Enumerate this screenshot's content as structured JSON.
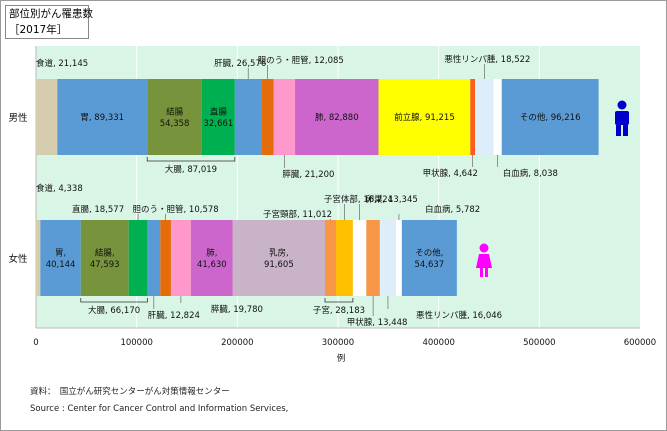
{
  "title": {
    "line1": "部位別がん罹患数",
    "line2": "［2017年］"
  },
  "source": {
    "line1": "資料：　国立がん研究センターがん対策情報センター",
    "line2": "Source : Center for Cancer Control and Information Services,"
  },
  "chart_data": {
    "type": "bar",
    "orientation": "horizontal",
    "stacked": true,
    "xlabel": "例",
    "xlim": [
      0,
      600000
    ],
    "xticks": [
      0,
      100000,
      200000,
      300000,
      400000,
      500000,
      600000
    ],
    "xtick_labels": [
      "0",
      "100000",
      "200000",
      "300000",
      "400000",
      "500000",
      "600000"
    ],
    "grid": true,
    "rows": [
      {
        "label": "男性",
        "icon": "male-figure-icon",
        "segments": [
          {
            "name": "食道",
            "value": 21145,
            "color": "#d6ccae",
            "label": "食道, 21,145",
            "label_pos": "outside"
          },
          {
            "name": "胃",
            "value": 89331,
            "color": "#5b9bd5",
            "label": "胃, 89,331",
            "label_pos": "inside"
          },
          {
            "name": "結腸",
            "value": 54358,
            "color": "#77933c",
            "label": "結腸\n54,358",
            "label_pos": "inside"
          },
          {
            "name": "直腸",
            "value": 32661,
            "color": "#00b050",
            "label": "直腸\n32,661",
            "label_pos": "inside"
          },
          {
            "name": "肝臓",
            "value": 26576,
            "color": "#5b9bd5",
            "label": "肝臓, 26,576",
            "label_pos": "outside"
          },
          {
            "name": "胆のう・胆管",
            "value": 12085,
            "color": "#e46c0a",
            "label": "胆のう・胆管, 12,085",
            "label_pos": "outside"
          },
          {
            "name": "膵臓",
            "value": 21200,
            "color": "#ff99cc",
            "label": "膵臓, 21,200",
            "label_pos": "outside"
          },
          {
            "name": "肺",
            "value": 82880,
            "color": "#cc66cc",
            "label": "肺, 82,880",
            "label_pos": "inside"
          },
          {
            "name": "前立腺",
            "value": 91215,
            "color": "#ffff00",
            "label": "前立腺, 91,215",
            "label_pos": "inside"
          },
          {
            "name": "甲状腺",
            "value": 4642,
            "color": "#ff5a1f",
            "label": "甲状腺, 4,642",
            "label_pos": "outside"
          },
          {
            "name": "悪性リンパ腫",
            "value": 18522,
            "color": "#ddeefa",
            "label": "悪性リンパ腫, 18,522",
            "label_pos": "outside"
          },
          {
            "name": "白血病",
            "value": 8038,
            "color": "#ffffff",
            "label": "白血病, 8,038",
            "label_pos": "outside"
          },
          {
            "name": "その他",
            "value": 96216,
            "color": "#5b9bd5",
            "label": "その他, 96,216",
            "label_pos": "inside"
          }
        ],
        "brackets": [
          {
            "label": "大腸, 87,019",
            "from": 2,
            "to": 3
          }
        ]
      },
      {
        "label": "女性",
        "icon": "female-figure-icon",
        "segments": [
          {
            "name": "食道",
            "value": 4338,
            "color": "#d6ccae",
            "label": "食道, 4,338",
            "label_pos": "outside"
          },
          {
            "name": "胃",
            "value": 40144,
            "color": "#5b9bd5",
            "label": "胃,\n40,144",
            "label_pos": "inside"
          },
          {
            "name": "結腸",
            "value": 47593,
            "color": "#77933c",
            "label": "結腸,\n47,593",
            "label_pos": "inside"
          },
          {
            "name": "直腸",
            "value": 18577,
            "color": "#00b050",
            "label": "直腸, 18,577",
            "label_pos": "outside"
          },
          {
            "name": "肝臓",
            "value": 12824,
            "color": "#5b9bd5",
            "label": "肝臓, 12,824",
            "label_pos": "outside"
          },
          {
            "name": "胆のう・胆管",
            "value": 10578,
            "color": "#e46c0a",
            "label": "胆のう・胆管, 10,578",
            "label_pos": "outside"
          },
          {
            "name": "膵臓",
            "value": 19780,
            "color": "#ff99cc",
            "label": "膵臓, 19,780",
            "label_pos": "outside"
          },
          {
            "name": "肺",
            "value": 41630,
            "color": "#cc66cc",
            "label": "肺,\n41,630",
            "label_pos": "inside"
          },
          {
            "name": "乳房",
            "value": 91605,
            "color": "#c9b3c9",
            "label": "乳房,\n91,605",
            "label_pos": "inside"
          },
          {
            "name": "子宮頸部",
            "value": 11012,
            "color": "#f79646",
            "label": "子宮頸部, 11,012",
            "label_pos": "outside"
          },
          {
            "name": "子宮体部",
            "value": 16724,
            "color": "#ffc000",
            "label": "子宮体部, 16,724",
            "label_pos": "outside"
          },
          {
            "name": "卵巣",
            "value": 13345,
            "color": "#ffffff",
            "label": "卵巣, 13,345",
            "label_pos": "outside"
          },
          {
            "name": "甲状腺",
            "value": 13448,
            "color": "#f79646",
            "label": "甲状腺, 13,448",
            "label_pos": "outside"
          },
          {
            "name": "悪性リンパ腫",
            "value": 16046,
            "color": "#ddeefa",
            "label": "悪性リンパ腫, 16,046",
            "label_pos": "outside"
          },
          {
            "name": "白血病",
            "value": 5782,
            "color": "#ffffff",
            "label": "白血病, 5,782",
            "label_pos": "outside"
          },
          {
            "name": "その他",
            "value": 54637,
            "color": "#5b9bd5",
            "label": "その他,\n54,637",
            "label_pos": "inside"
          }
        ],
        "brackets": [
          {
            "label": "大腸, 66,170",
            "from": 2,
            "to": 3
          },
          {
            "label": "子宮, 28,183",
            "from": 9,
            "to": 10
          }
        ]
      }
    ],
    "colors": {
      "plot_background": "#d9f5e6",
      "gridline": "#ffffff",
      "male_icon": "#0000cc",
      "female_icon": "#ff00ff"
    }
  }
}
